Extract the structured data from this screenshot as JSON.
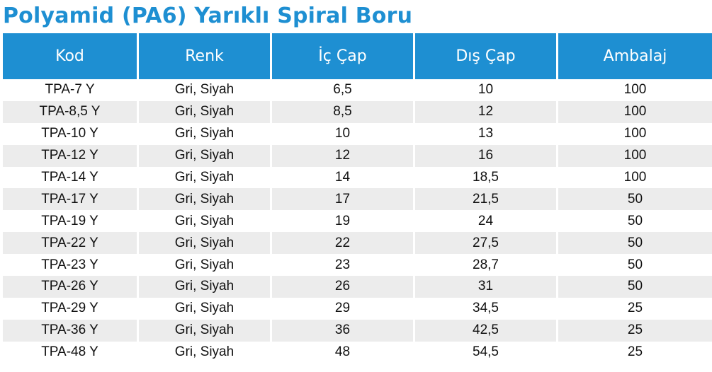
{
  "title": "Polyamid (PA6) Yarıklı Spiral Boru",
  "colors": {
    "accent": "#1e8fd2",
    "header_text": "#ffffff",
    "stripe": "#ececec"
  },
  "table": {
    "headers": [
      "Kod",
      "Renk",
      "İç Çap",
      "Dış Çap",
      "Ambalaj"
    ],
    "rows": [
      [
        "TPA-7 Y",
        "Gri, Siyah",
        "6,5",
        "10",
        "100"
      ],
      [
        "TPA-8,5 Y",
        "Gri, Siyah",
        "8,5",
        "12",
        "100"
      ],
      [
        "TPA-10 Y",
        "Gri, Siyah",
        "10",
        "13",
        "100"
      ],
      [
        "TPA-12 Y",
        "Gri, Siyah",
        "12",
        "16",
        "100"
      ],
      [
        "TPA-14 Y",
        "Gri, Siyah",
        "14",
        "18,5",
        "100"
      ],
      [
        "TPA-17 Y",
        "Gri, Siyah",
        "17",
        "21,5",
        "50"
      ],
      [
        "TPA-19 Y",
        "Gri, Siyah",
        "19",
        "24",
        "50"
      ],
      [
        "TPA-22 Y",
        "Gri, Siyah",
        "22",
        "27,5",
        "50"
      ],
      [
        "TPA-23 Y",
        "Gri, Siyah",
        "23",
        "28,7",
        "50"
      ],
      [
        "TPA-26 Y",
        "Gri, Siyah",
        "26",
        "31",
        "50"
      ],
      [
        "TPA-29 Y",
        "Gri, Siyah",
        "29",
        "34,5",
        "25"
      ],
      [
        "TPA-36 Y",
        "Gri, Siyah",
        "36",
        "42,5",
        "25"
      ],
      [
        "TPA-48 Y",
        "Gri, Siyah",
        "48",
        "54,5",
        "25"
      ]
    ]
  }
}
